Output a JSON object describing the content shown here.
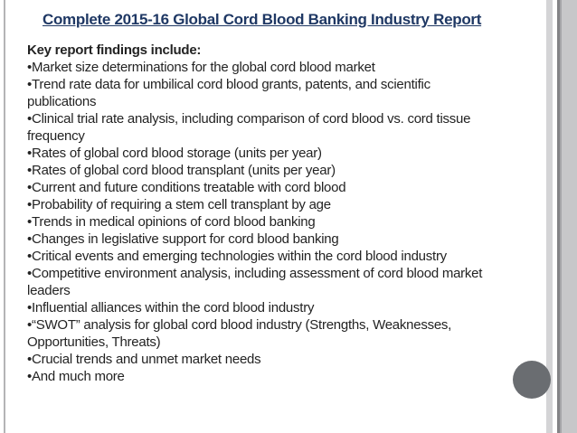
{
  "slide": {
    "title": "Complete 2015-16 Global Cord Blood Banking Industry Report",
    "heading": "Key report findings include:",
    "lines": [
      "•Market size determinations for the global cord blood market",
      "•Trend rate data for umbilical cord blood grants, patents, and scientific",
      "publications",
      "•Clinical trial rate analysis, including comparison of cord blood vs. cord tissue",
      "frequency",
      "•Rates of global cord blood storage (units per year)",
      "•Rates of global cord blood transplant (units per year)",
      "•Current and future conditions treatable with cord blood",
      "•Probability of requiring a stem cell transplant by age",
      "•Trends in medical opinions of cord blood banking",
      "•Changes in legislative support for cord blood banking",
      "•Critical events and emerging technologies within the cord blood industry",
      "•Competitive environment analysis, including assessment of cord blood market",
      "leaders",
      "•Influential alliances within the cord blood industry",
      "•“SWOT” analysis for global cord blood industry (Strengths, Weaknesses,",
      "Opportunities, Threats)",
      "•Crucial trends and unmet market needs",
      "•And much more"
    ]
  },
  "colors": {
    "title_text": "#1f3864",
    "body_text": "#232323",
    "circle": "#6a6d71",
    "right_background": "#c7c7c9"
  },
  "decorations": {
    "circle": "gray-dot"
  }
}
